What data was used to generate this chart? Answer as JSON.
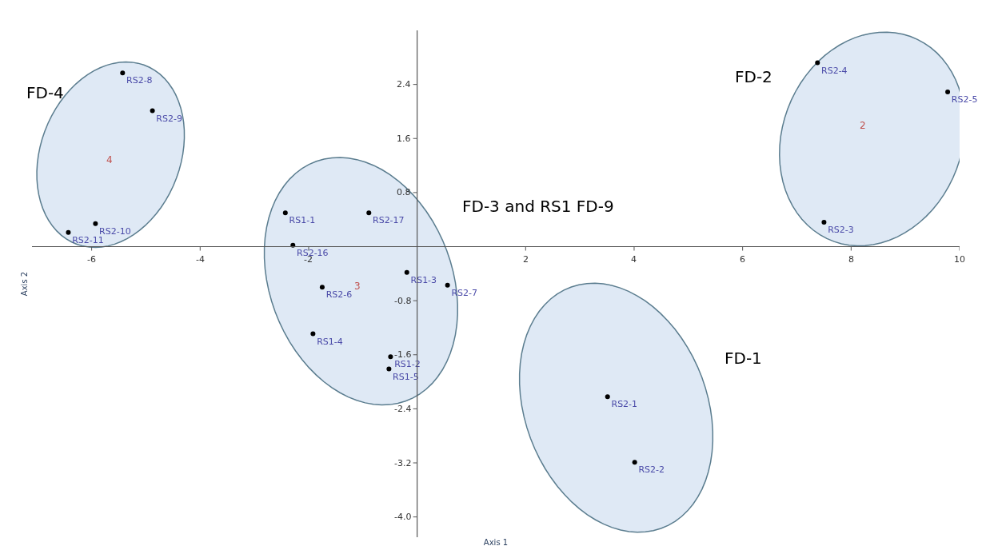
{
  "chart_data": {
    "type": "scatter",
    "xlabel": "Axis 1",
    "ylabel": "Axis 2",
    "xlim": [
      -7.1,
      10.0
    ],
    "ylim": [
      -4.3,
      3.2
    ],
    "xticks": [
      -6,
      -4,
      -2,
      2,
      4,
      6,
      8,
      10
    ],
    "yticks": [
      {
        "value": -4.0,
        "label": "-4.0"
      },
      -3.2,
      -2.4,
      -1.6,
      -0.8,
      0.8,
      1.6,
      2.4
    ],
    "grid": false,
    "legend": false,
    "marker": "circle",
    "series": [
      {
        "color": "#000000",
        "x": [
          -5.43,
          -4.88,
          -5.93,
          -6.43
        ],
        "values": [
          2.57,
          2.01,
          0.34,
          0.21
        ],
        "value_labels": [
          "RS2-8",
          "RS2-9",
          "RS2-10",
          "RS2-11"
        ]
      },
      {
        "color": "#000000",
        "x": [
          -2.43,
          -0.89,
          -2.29,
          -0.19,
          0.56,
          -1.75,
          -1.92,
          -0.49,
          -0.52
        ],
        "values": [
          0.5,
          0.5,
          0.02,
          -0.38,
          -0.57,
          -0.6,
          -1.29,
          -1.63,
          -1.81
        ],
        "value_labels": [
          "RS1-1",
          "RS2-17",
          "RS2-16",
          "RS1-3",
          "RS2-7",
          "RS2-6",
          "RS1-4",
          "RS1-2",
          "RS1-5"
        ]
      },
      {
        "color": "#000000",
        "x": [
          7.38,
          9.78,
          7.5
        ],
        "values": [
          2.72,
          2.29,
          0.36
        ],
        "value_labels": [
          "RS2-4",
          "RS2-5",
          "RS2-3"
        ]
      },
      {
        "color": "#000000",
        "x": [
          3.51,
          4.01
        ],
        "values": [
          -2.22,
          -3.19
        ],
        "value_labels": [
          "RS2-1",
          "RS2-2"
        ]
      }
    ],
    "annotations": [
      "FD-4",
      "FD-3 and RS1 FD-9",
      "FD-2",
      "FD-1",
      "4",
      "3",
      "2"
    ]
  }
}
